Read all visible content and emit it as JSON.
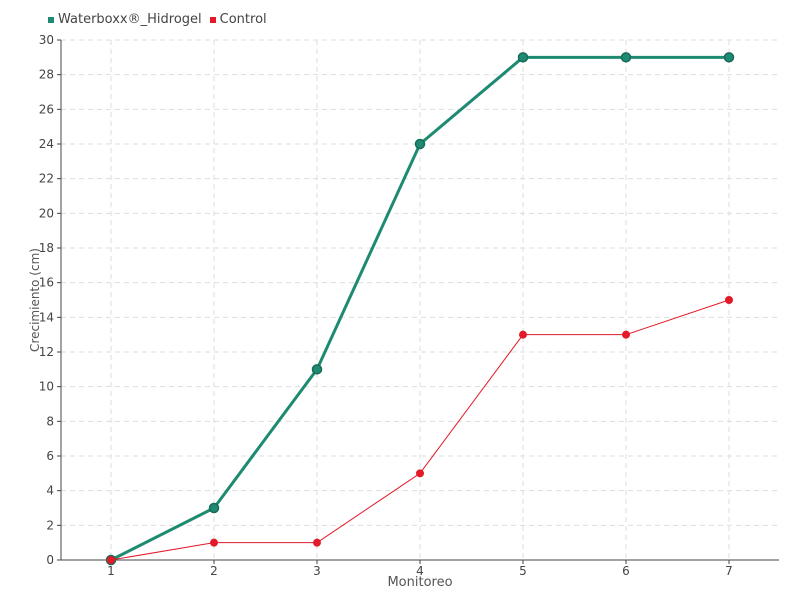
{
  "chart_data": {
    "type": "line",
    "xlabel": "Monitoreo",
    "ylabel": "Crecimiento (cm)",
    "x": [
      1,
      2,
      3,
      4,
      5,
      6,
      7
    ],
    "ylim": [
      0,
      30
    ],
    "ytick_step": 2,
    "grid": true,
    "legend_position": "top-left",
    "series": [
      {
        "name": "Waterboxx®_Hidrogel",
        "color": "#1e8a72",
        "values": [
          0,
          3,
          11,
          24,
          29,
          29,
          29
        ]
      },
      {
        "name": "Control",
        "color": "#e31a2a",
        "values": [
          0,
          1,
          1,
          5,
          13,
          13,
          15
        ]
      }
    ]
  }
}
